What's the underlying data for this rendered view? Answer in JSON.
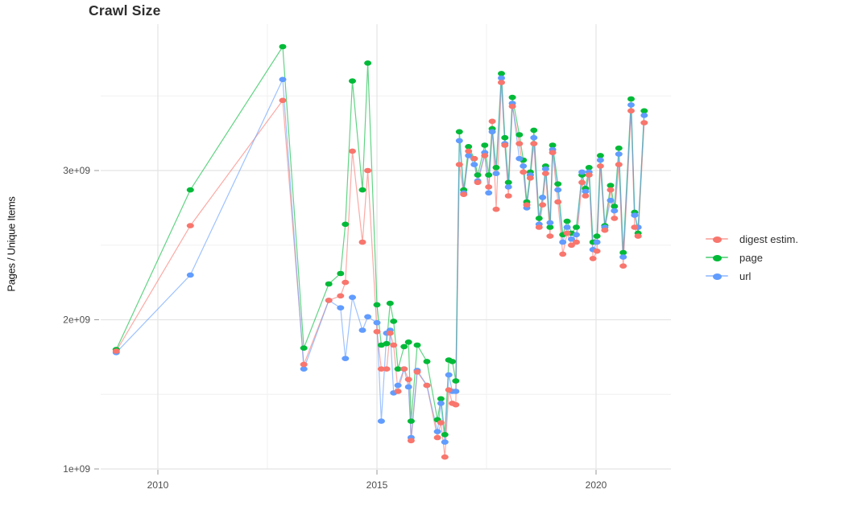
{
  "chart_data": {
    "type": "line",
    "title": "Crawl Size",
    "ylabel": "Pages / Unique Items",
    "xlabel": "",
    "legend_position": "right",
    "grid": true,
    "background": "#ffffff",
    "major_grid_color": "#e4e4e4",
    "minor_grid_color": "#f0f0f0",
    "tick_color": "#999999",
    "tick_label_color": "#4d4d4d",
    "xlim": [
      2008.69,
      2021.71
    ],
    "ylim": [
      1000000000.0,
      3980000000.0
    ],
    "x_ticks": [
      2010,
      2015,
      2020
    ],
    "x_tick_labels": [
      "2010",
      "2015",
      "2020"
    ],
    "x_minor_ticks": [
      2012.5,
      2017.5
    ],
    "y_ticks_e9": [
      1,
      2,
      3
    ],
    "y_tick_labels": [
      "1e+09",
      "2e+09",
      "3e+09"
    ],
    "y_minor_ticks_e9": [
      1.5,
      2.5,
      3.5
    ],
    "x": [
      2009.05,
      2010.74,
      2012.85,
      2013.33,
      2013.9,
      2014.17,
      2014.28,
      2014.44,
      2014.67,
      2014.79,
      2015.0,
      2015.1,
      2015.22,
      2015.3,
      2015.38,
      2015.48,
      2015.62,
      2015.72,
      2015.78,
      2015.92,
      2016.14,
      2016.38,
      2016.46,
      2016.55,
      2016.64,
      2016.72,
      2016.8,
      2016.88,
      2016.98,
      2017.09,
      2017.22,
      2017.3,
      2017.46,
      2017.55,
      2017.63,
      2017.72,
      2017.84,
      2017.92,
      2018.0,
      2018.09,
      2018.25,
      2018.34,
      2018.42,
      2018.5,
      2018.58,
      2018.7,
      2018.78,
      2018.85,
      2018.95,
      2019.01,
      2019.13,
      2019.24,
      2019.34,
      2019.44,
      2019.55,
      2019.68,
      2019.76,
      2019.84,
      2019.93,
      2020.02,
      2020.1,
      2020.2,
      2020.33,
      2020.42,
      2020.52,
      2020.62,
      2020.8,
      2020.88,
      2020.96,
      2021.1
    ],
    "series": [
      {
        "name": "digest estim.",
        "color": "#F8766D",
        "values_e9": [
          1.79,
          2.63,
          3.47,
          1.7,
          2.13,
          2.16,
          2.25,
          3.13,
          2.52,
          3.0,
          1.92,
          1.67,
          1.67,
          1.91,
          1.83,
          1.52,
          1.67,
          1.6,
          1.19,
          1.65,
          1.56,
          1.21,
          1.31,
          1.08,
          1.53,
          1.44,
          1.43,
          3.04,
          2.84,
          3.13,
          3.08,
          2.92,
          3.1,
          2.89,
          3.33,
          2.74,
          3.59,
          3.17,
          2.83,
          3.43,
          3.18,
          2.99,
          2.77,
          2.95,
          3.18,
          2.62,
          2.77,
          2.98,
          2.56,
          3.12,
          2.79,
          2.44,
          2.58,
          2.5,
          2.52,
          2.92,
          2.83,
          2.97,
          2.41,
          2.46,
          3.03,
          2.6,
          2.87,
          2.68,
          3.04,
          2.36,
          3.4,
          2.62,
          2.56,
          3.32
        ]
      },
      {
        "name": "page",
        "color": "#00BA38",
        "values_e9": [
          1.8,
          2.87,
          3.83,
          1.81,
          2.24,
          2.31,
          2.64,
          3.6,
          2.87,
          3.72,
          2.1,
          1.83,
          1.84,
          2.11,
          1.99,
          1.67,
          1.82,
          1.85,
          1.32,
          1.83,
          1.72,
          1.33,
          1.47,
          1.23,
          1.73,
          1.72,
          1.59,
          3.26,
          2.87,
          3.16,
          3.08,
          2.97,
          3.17,
          2.97,
          3.28,
          3.02,
          3.65,
          3.22,
          2.92,
          3.49,
          3.24,
          3.07,
          2.79,
          2.99,
          3.27,
          2.68,
          2.82,
          3.03,
          2.62,
          3.17,
          2.91,
          2.57,
          2.66,
          2.58,
          2.62,
          2.97,
          2.88,
          3.02,
          2.52,
          2.56,
          3.1,
          2.63,
          2.9,
          2.76,
          3.15,
          2.45,
          3.48,
          2.72,
          2.58,
          3.4
        ]
      },
      {
        "name": "url",
        "color": "#619CFF",
        "values_e9": [
          1.78,
          2.3,
          3.61,
          1.67,
          2.13,
          2.08,
          1.74,
          2.15,
          1.93,
          2.02,
          1.98,
          1.32,
          1.91,
          1.93,
          1.51,
          1.56,
          1.67,
          1.55,
          1.21,
          1.66,
          1.56,
          1.25,
          1.44,
          1.18,
          1.63,
          1.52,
          1.52,
          3.2,
          2.85,
          3.1,
          3.04,
          2.93,
          3.12,
          2.85,
          3.26,
          2.98,
          3.62,
          3.18,
          2.89,
          3.45,
          3.08,
          3.03,
          2.75,
          2.97,
          3.22,
          2.64,
          2.82,
          3.01,
          2.65,
          3.14,
          2.87,
          2.52,
          2.62,
          2.54,
          2.57,
          2.99,
          2.86,
          2.99,
          2.47,
          2.52,
          3.07,
          2.62,
          2.8,
          2.73,
          3.11,
          2.42,
          3.44,
          2.7,
          2.62,
          3.37
        ]
      }
    ]
  }
}
